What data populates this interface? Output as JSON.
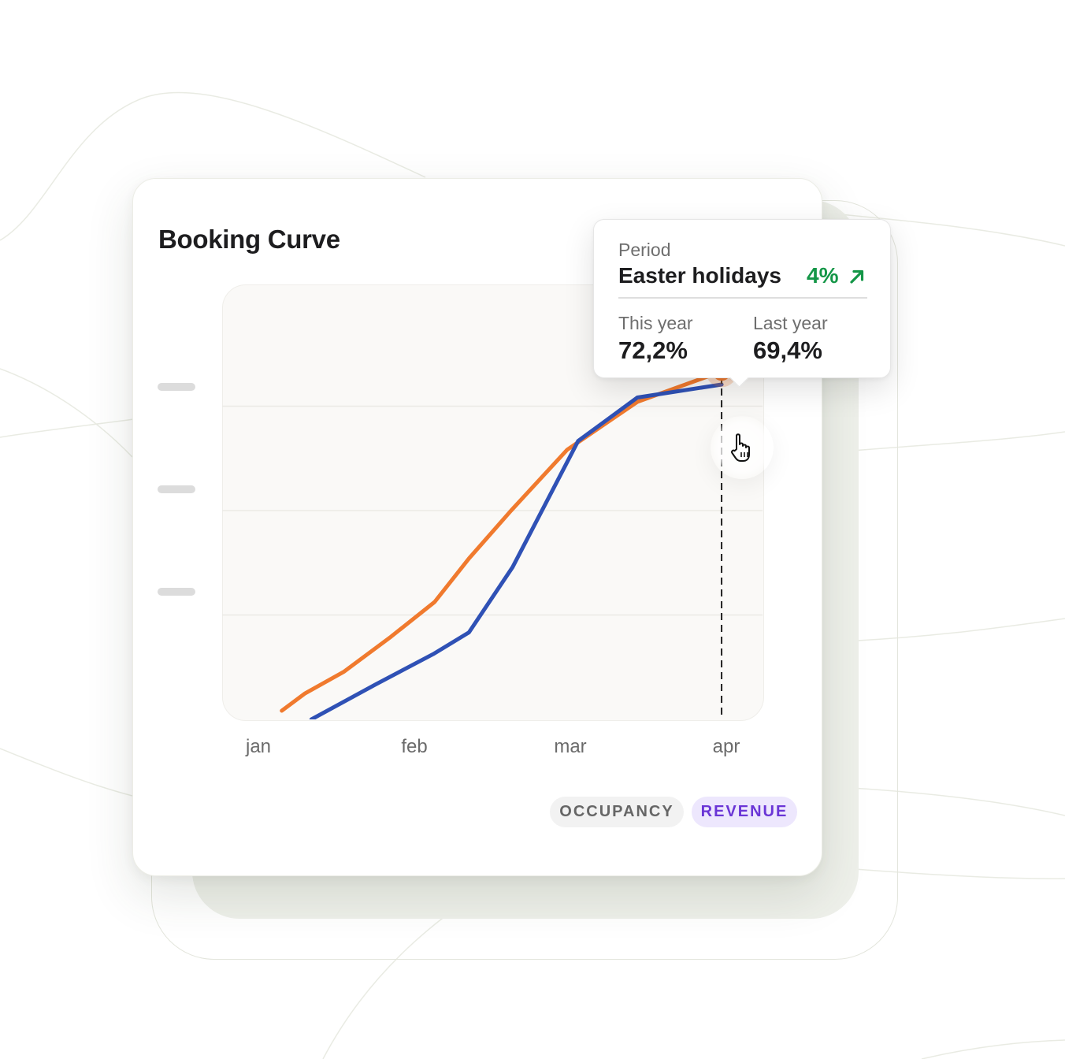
{
  "chart_data": {
    "type": "line",
    "title": "Booking Curve",
    "categories": [
      "jan",
      "feb",
      "mar",
      "apr"
    ],
    "series": [
      {
        "color": "#f07a2e",
        "points": [
          [
            0.15,
            2
          ],
          [
            0.3,
            6
          ],
          [
            0.55,
            11
          ],
          [
            0.85,
            19
          ],
          [
            1.13,
            27
          ],
          [
            1.35,
            37
          ],
          [
            1.62,
            48
          ],
          [
            1.98,
            62
          ],
          [
            2.43,
            73
          ],
          [
            2.97,
            80
          ]
        ]
      },
      {
        "color": "#2f51b5",
        "points": [
          [
            0.34,
            0
          ],
          [
            0.75,
            8
          ],
          [
            1.12,
            15
          ],
          [
            1.35,
            20
          ],
          [
            1.63,
            35
          ],
          [
            2.05,
            64
          ],
          [
            2.43,
            74
          ],
          [
            2.97,
            77
          ]
        ]
      }
    ],
    "y_gridlines": [
      24,
      48,
      72
    ],
    "ylim": [
      0,
      100
    ],
    "xlim": [
      0,
      3
    ],
    "grid": true,
    "legend_chips": [
      {
        "label": "OCCUPANCY",
        "active": false
      },
      {
        "label": "REVENUE",
        "active": true
      }
    ],
    "hover": {
      "x": 2.97,
      "y": 80,
      "tooltip": {
        "period_label": "Period",
        "period_name": "Easter holidays",
        "change": "4%",
        "change_color": "#149647",
        "this_year_label": "This year",
        "this_year_value": "72,2%",
        "last_year_label": "Last year",
        "last_year_value": "69,4%"
      }
    }
  }
}
